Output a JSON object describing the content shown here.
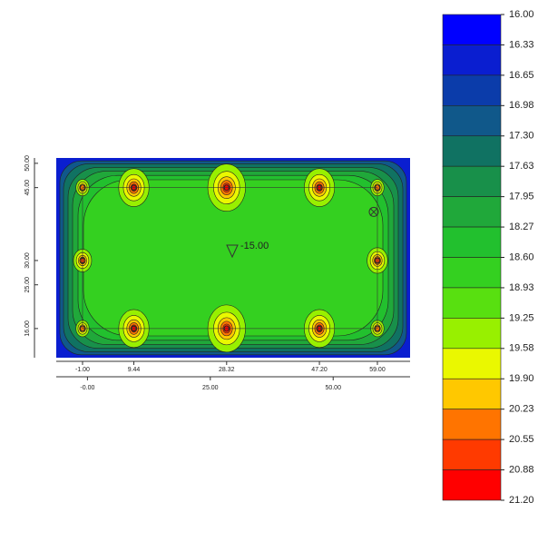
{
  "chart_data": {
    "type": "contour",
    "annotation": "-15.00",
    "xlim": [
      -6.35,
      65.65
    ],
    "ylim": [
      10,
      51.1
    ],
    "xticks_top": [
      {
        "value": -1,
        "label": "-1.00"
      },
      {
        "value": 9.44,
        "label": "9.44"
      },
      {
        "value": 28.32,
        "label": "28.32"
      },
      {
        "value": 47.2,
        "label": "47.20"
      },
      {
        "value": 59,
        "label": "59.00"
      }
    ],
    "xticks_bottom": [
      {
        "value": 0,
        "label": "-0.00"
      },
      {
        "value": 25,
        "label": "25.00"
      },
      {
        "value": 50,
        "label": "50.00"
      }
    ],
    "yticks": [
      {
        "value": 50,
        "label": "50.00"
      },
      {
        "value": 45,
        "label": "45.00"
      },
      {
        "value": 30,
        "label": "30.00"
      },
      {
        "value": 25,
        "label": "25.00"
      },
      {
        "value": 16,
        "label": "16.00"
      }
    ],
    "colorbar": {
      "levels": [
        {
          "value": 16,
          "label": "16.00"
        },
        {
          "value": 16.33,
          "label": "16.33"
        },
        {
          "value": 16.65,
          "label": "16.65"
        },
        {
          "value": 16.98,
          "label": "16.98"
        },
        {
          "value": 17.3,
          "label": "17.30"
        },
        {
          "value": 17.63,
          "label": "17.63"
        },
        {
          "value": 17.95,
          "label": "17.95"
        },
        {
          "value": 18.27,
          "label": "18.27"
        },
        {
          "value": 18.6,
          "label": "18.60"
        },
        {
          "value": 18.93,
          "label": "18.93"
        },
        {
          "value": 19.25,
          "label": "19.25"
        },
        {
          "value": 19.58,
          "label": "19.58"
        },
        {
          "value": 19.9,
          "label": "19.90"
        },
        {
          "value": 20.23,
          "label": "20.23"
        },
        {
          "value": 20.55,
          "label": "20.55"
        },
        {
          "value": 20.88,
          "label": "20.88"
        },
        {
          "value": 21.2,
          "label": "21.20"
        }
      ],
      "colors": [
        "#0000ff",
        "#0a1ed0",
        "#0b3caa",
        "#10588a",
        "#107262",
        "#18904a",
        "#20a83a",
        "#22c02e",
        "#34d020",
        "#58e010",
        "#98f000",
        "#eaf800",
        "#ffc800",
        "#ff7400",
        "#ff3a00",
        "#ff0000"
      ]
    }
  }
}
